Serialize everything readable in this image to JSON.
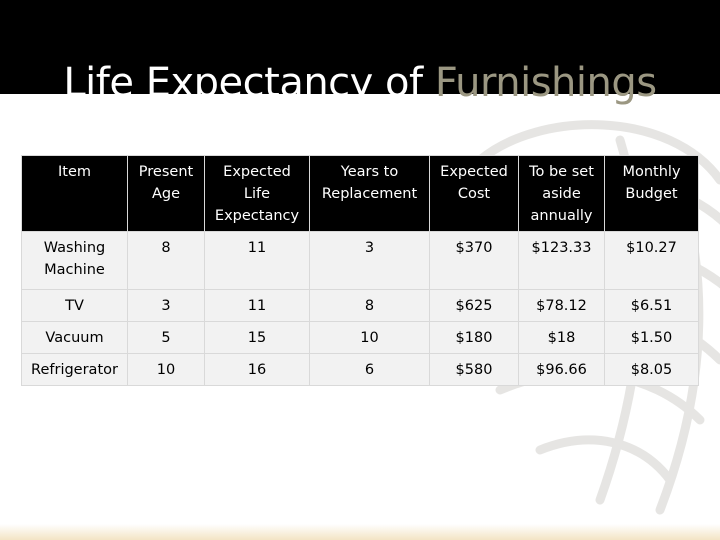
{
  "slide": {
    "title_main": "Life Expectancy of ",
    "title_accent": "Furnishings"
  },
  "table": {
    "headers": [
      "Item",
      "Present Age",
      "Expected Life Expectancy",
      "Years to Replacement",
      "Expected Cost",
      "To be set aside annually",
      "Monthly Budget"
    ],
    "rows": [
      [
        "Washing Machine",
        "8",
        "11",
        "3",
        "$370",
        "$123.33",
        "$10.27"
      ],
      [
        "TV",
        "3",
        "11",
        "8",
        "$625",
        "$78.12",
        "$6.51"
      ],
      [
        "Vacuum",
        "5",
        "15",
        "10",
        "$180",
        "$18",
        "$1.50"
      ],
      [
        "Refrigerator",
        "10",
        "16",
        "6",
        "$580",
        "$96.66",
        "$8.05"
      ]
    ]
  },
  "colors": {
    "title_bar": "#000000",
    "title_text": "#ffffff",
    "title_accent": "#9b9782",
    "header_bg": "#000000",
    "cell_bg": "#f2f2f2"
  }
}
